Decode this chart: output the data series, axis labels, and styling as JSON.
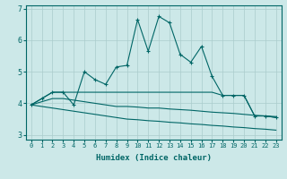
{
  "xlabel": "Humidex (Indice chaleur)",
  "bg_color": "#cce8e8",
  "grid_color": "#aacccc",
  "line_color": "#006666",
  "x_values": [
    0,
    1,
    2,
    3,
    4,
    5,
    6,
    7,
    8,
    9,
    10,
    11,
    12,
    13,
    14,
    15,
    16,
    17,
    18,
    19,
    20,
    21,
    22,
    23
  ],
  "line_zigzag": [
    3.95,
    4.15,
    4.35,
    4.35,
    3.95,
    5.0,
    4.75,
    4.6,
    5.15,
    5.2,
    6.65,
    5.65,
    6.75,
    6.55,
    5.55,
    5.3,
    5.8,
    4.85,
    4.25,
    4.25,
    4.25,
    3.6,
    3.6,
    3.55
  ],
  "line_upper_flat": [
    3.95,
    4.15,
    4.35,
    4.35,
    4.35,
    4.35,
    4.35,
    4.35,
    4.35,
    4.35,
    4.35,
    4.35,
    4.35,
    4.35,
    4.35,
    4.35,
    4.35,
    4.35,
    4.25,
    4.25,
    4.25,
    3.6,
    3.6,
    3.55
  ],
  "line_mid_flat": [
    3.95,
    4.05,
    4.15,
    4.15,
    4.1,
    4.05,
    4.0,
    3.95,
    3.9,
    3.9,
    3.88,
    3.85,
    3.85,
    3.82,
    3.8,
    3.78,
    3.75,
    3.72,
    3.7,
    3.68,
    3.65,
    3.62,
    3.6,
    3.58
  ],
  "line_lower_flat": [
    3.95,
    3.9,
    3.85,
    3.8,
    3.75,
    3.7,
    3.65,
    3.6,
    3.55,
    3.5,
    3.48,
    3.45,
    3.43,
    3.4,
    3.38,
    3.35,
    3.33,
    3.3,
    3.28,
    3.25,
    3.23,
    3.2,
    3.18,
    3.15
  ],
  "ylim": [
    2.85,
    7.1
  ],
  "yticks": [
    3,
    4,
    5,
    6,
    7
  ],
  "xticks": [
    0,
    1,
    2,
    3,
    4,
    5,
    6,
    7,
    8,
    9,
    10,
    11,
    12,
    13,
    14,
    15,
    16,
    17,
    18,
    19,
    20,
    21,
    22,
    23
  ]
}
